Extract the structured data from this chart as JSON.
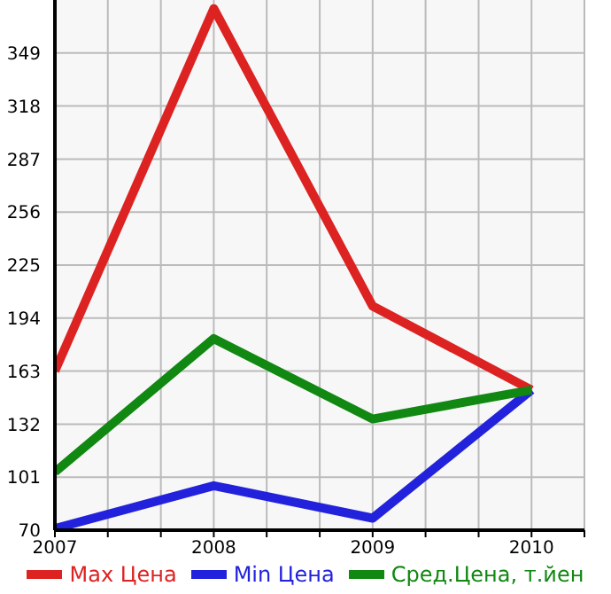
{
  "chart_data": {
    "type": "line",
    "x": [
      2007,
      2008,
      2009,
      2010
    ],
    "series": [
      {
        "name": "Max Цена",
        "color": "#dd2222",
        "values": [
          163,
          375,
          201,
          152
        ]
      },
      {
        "name": "Min Цена",
        "color": "#2222dd",
        "values": [
          71,
          96,
          77,
          152
        ]
      },
      {
        "name": "Сред.Цена, т.йен",
        "color": "#118811",
        "values": [
          104,
          182,
          135,
          152
        ]
      }
    ],
    "xlim": [
      2007,
      2010.333
    ],
    "xticks": [
      2007,
      {
        "value": 2007.333,
        "label": null
      },
      {
        "value": 2007.667,
        "label": null
      },
      2008,
      {
        "value": 2008.333,
        "label": null
      },
      {
        "value": 2008.667,
        "label": null
      },
      2009,
      {
        "value": 2009.333,
        "label": null
      },
      {
        "value": 2009.667,
        "label": null
      },
      2010,
      {
        "value": 2010.333,
        "label": null
      }
    ],
    "ylim": [
      70,
      380
    ],
    "yticks": [
      70,
      101,
      132,
      163,
      194,
      225,
      256,
      287,
      318,
      349
    ],
    "grid": true,
    "legend": "bottom",
    "marker": "none",
    "line_style": "solid"
  }
}
